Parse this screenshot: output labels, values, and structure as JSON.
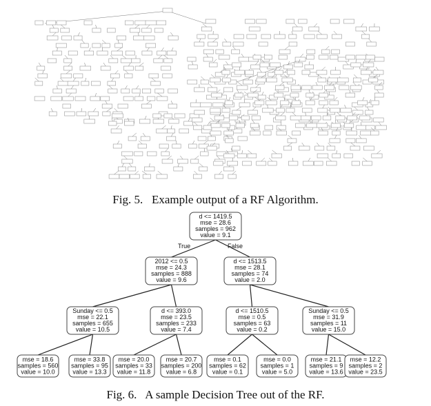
{
  "fig5": {
    "caption_label": "Fig. 5.",
    "caption_text": "Example output of a RF Algorithm."
  },
  "fig6": {
    "caption_label": "Fig. 6.",
    "caption_text": "A sample Decision Tree out of the RF.",
    "edge_labels": {
      "true": "True",
      "false": "False"
    },
    "nodes": [
      {
        "id": "n0",
        "lines": [
          "d <= 1419.5",
          "mse = 28.6",
          "samples = 962",
          "value = 9.1"
        ]
      },
      {
        "id": "n1",
        "lines": [
          "2012 <= 0.5",
          "mse = 24.3",
          "samples = 888",
          "value = 9.6"
        ]
      },
      {
        "id": "n2",
        "lines": [
          "d <= 1513.5",
          "mse = 28.1",
          "samples = 74",
          "value = 2.0"
        ]
      },
      {
        "id": "n3",
        "lines": [
          "Sunday <= 0.5",
          "mse = 22.1",
          "samples = 655",
          "value = 10.5"
        ]
      },
      {
        "id": "n4",
        "lines": [
          "d <= 393.0",
          "mse = 23.5",
          "samples = 233",
          "value = 7.4"
        ]
      },
      {
        "id": "n5",
        "lines": [
          "d <= 1510.5",
          "mse = 0.5",
          "samples = 63",
          "value = 0.2"
        ]
      },
      {
        "id": "n6",
        "lines": [
          "Sunday <= 0.5",
          "mse = 31.9",
          "samples = 11",
          "value = 15.0"
        ]
      },
      {
        "id": "n7",
        "lines": [
          "mse = 18.6",
          "samples = 560",
          "value = 10.0"
        ]
      },
      {
        "id": "n8",
        "lines": [
          "mse = 33.8",
          "samples = 95",
          "value = 13.3"
        ]
      },
      {
        "id": "n9",
        "lines": [
          "mse = 20.0",
          "samples = 33",
          "value = 11.8"
        ]
      },
      {
        "id": "n10",
        "lines": [
          "mse = 20.7",
          "samples = 200",
          "value = 6.8"
        ]
      },
      {
        "id": "n11",
        "lines": [
          "mse = 0.1",
          "samples = 62",
          "value = 0.1"
        ]
      },
      {
        "id": "n12",
        "lines": [
          "mse = 0.0",
          "samples = 1",
          "value = 5.0"
        ]
      },
      {
        "id": "n13",
        "lines": [
          "mse = 21.1",
          "samples = 9",
          "value = 13.6"
        ]
      },
      {
        "id": "n14",
        "lines": [
          "mse = 12.2",
          "samples = 2",
          "value = 23.5"
        ]
      }
    ]
  }
}
